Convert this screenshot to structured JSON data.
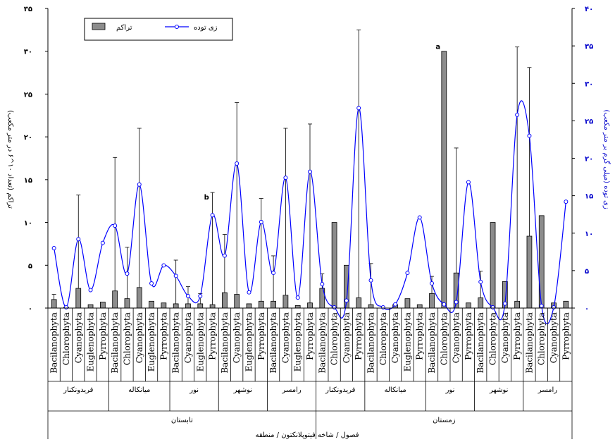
{
  "chart_data": {
    "type": "bar",
    "title": "",
    "xlabel": "فصول / شاخه فیتوپلانکتون / منطقه",
    "ylabel_left": "تراکم (تعداد ۱۰^۶ در متر مکعب)",
    "ylabel_right": "زی توده (میلی گرم بر متر مکعب)",
    "ylim_left": [
      0,
      35
    ],
    "ylim_right": [
      0,
      40
    ],
    "yticks_left": [
      "۰",
      "۵",
      "۱۰",
      "۱۵",
      "۲۰",
      "۲۵",
      "۳۰",
      "۳۵"
    ],
    "yticks_right": [
      "۰",
      "۵",
      "۱۰",
      "۱۵",
      "۲۰",
      "۲۵",
      "۳۰",
      "۳۵",
      "۴۰"
    ],
    "legend": {
      "position": "top-left",
      "bar_label": "تراکم",
      "line_label": "زی توده"
    },
    "colors": {
      "bar": "#8c8c8c",
      "line": "#0000ff",
      "right_axis": "#0000cc"
    },
    "categories": [
      "Bacilanophyta",
      "Chlorophyta",
      "Cyanophyta",
      "Euglenophyta",
      "Pyrrophyta",
      "Bacilanophyta",
      "Chlorophyta",
      "Cyanophyta",
      "Euglenophyta",
      "Pyrrophyta",
      "Bacilanophyta",
      "Cyanophyta",
      "Euglenophyta",
      "Pyrrophyta",
      "Bacilanophyta",
      "Cyanophyta",
      "Euglenophyta",
      "Pyrrophyta",
      "Bacilanophyta",
      "Cyanophyta",
      "Euglenophyta",
      "Pyrrophyta",
      "Bacilanophyta",
      "Chlorophyta",
      "Cyanophyta",
      "Pyrrophyta",
      "Bacilanophyta",
      "Chlorophyta",
      "Cyanophyta",
      "Euglenophyta",
      "Pyrrophyta",
      "Bacilanophyta",
      "Chlorophyta",
      "Cyanophyta",
      "Pyrrophyta",
      "Bacilanophyta",
      "Chlorophyta",
      "Cyanophyta",
      "Pyrrophyta",
      "Bacilanophyta",
      "Chlorophyta",
      "Cyanophyta",
      "Pyrrophyta"
    ],
    "regions": [
      {
        "label": "فریدونکنار",
        "count": 5
      },
      {
        "label": "میانکاله",
        "count": 5
      },
      {
        "label": "نور",
        "count": 4
      },
      {
        "label": "نوشهر",
        "count": 4
      },
      {
        "label": "رامسر",
        "count": 4
      },
      {
        "label": "فریدونکنار",
        "count": 4
      },
      {
        "label": "میانکاله",
        "count": 5
      },
      {
        "label": "نور",
        "count": 4
      },
      {
        "label": "نوشهر",
        "count": 4
      },
      {
        "label": "رامسر",
        "count": 4
      }
    ],
    "seasons": [
      {
        "label": "تابستان",
        "count": 22
      },
      {
        "label": "زمستان",
        "count": 21
      }
    ],
    "series": [
      {
        "name": "تراکم",
        "values": [
          1.0,
          0.1,
          2.3,
          0.4,
          0.7,
          2.0,
          1.1,
          2.4,
          0.8,
          0.6,
          0.5,
          0.5,
          0.5,
          0.4,
          1.8,
          1.6,
          0.5,
          0.8,
          0.8,
          1.5,
          0.3,
          0.6,
          2.3,
          10.0,
          5.0,
          1.2,
          0.4,
          0.0,
          0.4,
          1.1,
          0.4,
          1.7,
          30.0,
          4.1,
          0.6,
          1.2,
          10.0,
          3.1,
          0.8,
          8.4,
          10.8,
          0.6,
          0.8
        ],
        "error_up": [
          1.6,
          0.1,
          13.2,
          0.4,
          0.7,
          17.6,
          7.1,
          21.0,
          0.8,
          0.6,
          5.6,
          2.5,
          1.7,
          13.5,
          8.6,
          24.0,
          0.5,
          12.8,
          6.1,
          21.0,
          0.3,
          21.5,
          4.0,
          10.0,
          5.0,
          32.5,
          5.2,
          0.0,
          0.4,
          1.1,
          0.4,
          3.7,
          30.0,
          18.7,
          0.6,
          4.3,
          10.0,
          3.1,
          30.5,
          28.1,
          10.8,
          0.6,
          0.8
        ]
      },
      {
        "name": "زی توده",
        "values": [
          8.0,
          0.1,
          9.2,
          2.4,
          8.7,
          11.0,
          4.6,
          16.5,
          3.3,
          5.7,
          4.3,
          1.6,
          1.6,
          12.4,
          7.0,
          19.3,
          2.1,
          11.5,
          4.7,
          17.4,
          1.4,
          18.2,
          3.2,
          0.1,
          1.0,
          26.7,
          3.7,
          0.1,
          0.5,
          4.7,
          12.1,
          3.3,
          0.5,
          0.8,
          16.8,
          3.5,
          0.1,
          0.6,
          25.8,
          23.0,
          0.3,
          0.1,
          14.2
        ]
      }
    ],
    "annotations": [
      {
        "text": "a",
        "category_index": 32
      },
      {
        "text": "b",
        "category_index": 13
      }
    ]
  }
}
